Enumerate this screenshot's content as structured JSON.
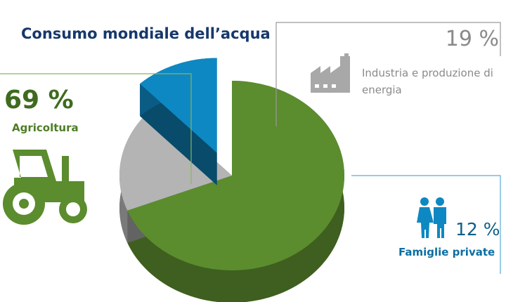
{
  "chart_data": {
    "type": "pie",
    "title": "Consumo mondiale dell’acqua",
    "categories": [
      "Agricoltura",
      "Industria e produzione di energia",
      "Famiglie private"
    ],
    "values": [
      69,
      19,
      12
    ],
    "value_labels": [
      "69 %",
      "19 %",
      "12 %"
    ],
    "colors": [
      "#5b8c2e",
      "#b4b4b4",
      "#0e88c2"
    ],
    "explode": [
      false,
      false,
      true
    ]
  }
}
